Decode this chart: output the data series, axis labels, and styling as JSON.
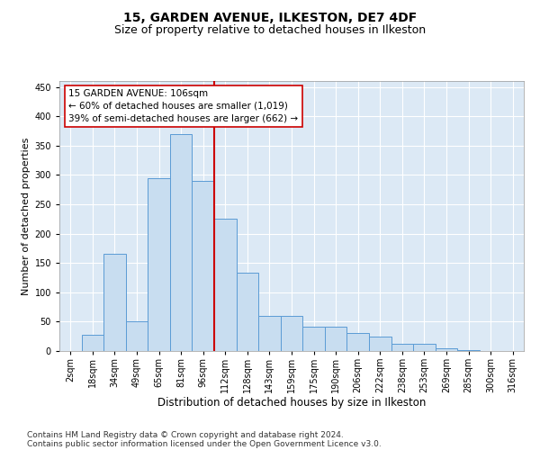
{
  "title1": "15, GARDEN AVENUE, ILKESTON, DE7 4DF",
  "title2": "Size of property relative to detached houses in Ilkeston",
  "xlabel": "Distribution of detached houses by size in Ilkeston",
  "ylabel": "Number of detached properties",
  "footnote1": "Contains HM Land Registry data © Crown copyright and database right 2024.",
  "footnote2": "Contains public sector information licensed under the Open Government Licence v3.0.",
  "annotation_line1": "15 GARDEN AVENUE: 106sqm",
  "annotation_line2": "← 60% of detached houses are smaller (1,019)",
  "annotation_line3": "39% of semi-detached houses are larger (662) →",
  "bar_labels": [
    "2sqm",
    "18sqm",
    "34sqm",
    "49sqm",
    "65sqm",
    "81sqm",
    "96sqm",
    "112sqm",
    "128sqm",
    "143sqm",
    "159sqm",
    "175sqm",
    "190sqm",
    "206sqm",
    "222sqm",
    "238sqm",
    "253sqm",
    "269sqm",
    "285sqm",
    "300sqm",
    "316sqm"
  ],
  "bar_values": [
    0,
    28,
    165,
    50,
    295,
    370,
    290,
    226,
    133,
    60,
    60,
    42,
    42,
    30,
    25,
    13,
    13,
    5,
    2,
    0,
    0
  ],
  "bar_width": 1.0,
  "bar_color": "#c8ddf0",
  "bar_edge_color": "#5b9bd5",
  "vline_color": "#cc0000",
  "vline_x": 6.5,
  "ylim": [
    0,
    460
  ],
  "yticks": [
    0,
    50,
    100,
    150,
    200,
    250,
    300,
    350,
    400,
    450
  ],
  "axes_background": "#dce9f5",
  "grid_color": "#ffffff",
  "annotation_box_color": "#ffffff",
  "annotation_border_color": "#cc0000",
  "title1_fontsize": 10,
  "title2_fontsize": 9,
  "xlabel_fontsize": 8.5,
  "ylabel_fontsize": 8,
  "tick_fontsize": 7,
  "annotation_fontsize": 7.5,
  "footnote_fontsize": 6.5
}
